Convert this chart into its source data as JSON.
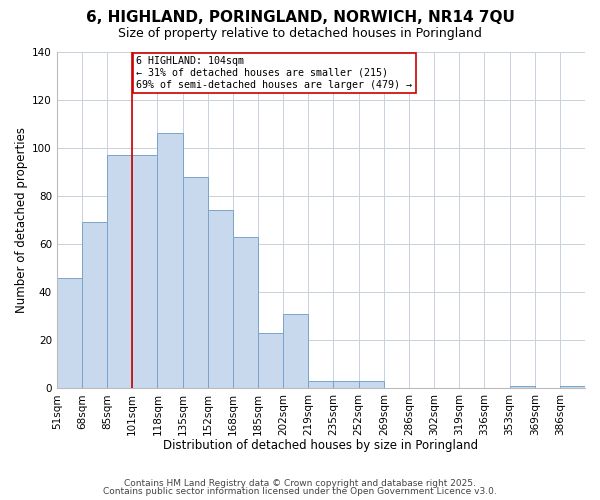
{
  "title": "6, HIGHLAND, PORINGLAND, NORWICH, NR14 7QU",
  "subtitle": "Size of property relative to detached houses in Poringland",
  "xlabel": "Distribution of detached houses by size in Poringland",
  "ylabel": "Number of detached properties",
  "bar_color": "#c8d9ee",
  "bar_edge_color": "#7aa4cc",
  "background_color": "#ffffff",
  "grid_color": "#c8d0de",
  "annotation_line_color": "#cc0000",
  "annotation_text_line1": "6 HIGHLAND: 104sqm",
  "annotation_text_line2": "← 31% of detached houses are smaller (215)",
  "annotation_text_line3": "69% of semi-detached houses are larger (479) →",
  "annotation_box_edge_color": "#cc0000",
  "vline_x": 3,
  "categories": [
    "51sqm",
    "68sqm",
    "85sqm",
    "101sqm",
    "118sqm",
    "135sqm",
    "152sqm",
    "168sqm",
    "185sqm",
    "202sqm",
    "219sqm",
    "235sqm",
    "252sqm",
    "269sqm",
    "286sqm",
    "302sqm",
    "319sqm",
    "336sqm",
    "353sqm",
    "369sqm",
    "386sqm"
  ],
  "values": [
    46,
    69,
    97,
    97,
    106,
    88,
    74,
    63,
    23,
    31,
    3,
    3,
    3,
    0,
    0,
    0,
    0,
    0,
    1,
    0,
    1
  ],
  "ylim": [
    0,
    140
  ],
  "yticks": [
    0,
    20,
    40,
    60,
    80,
    100,
    120,
    140
  ],
  "footer_line1": "Contains HM Land Registry data © Crown copyright and database right 2025.",
  "footer_line2": "Contains public sector information licensed under the Open Government Licence v3.0.",
  "title_fontsize": 11,
  "subtitle_fontsize": 9,
  "axis_label_fontsize": 8.5,
  "tick_fontsize": 7.5,
  "footer_fontsize": 6.5
}
